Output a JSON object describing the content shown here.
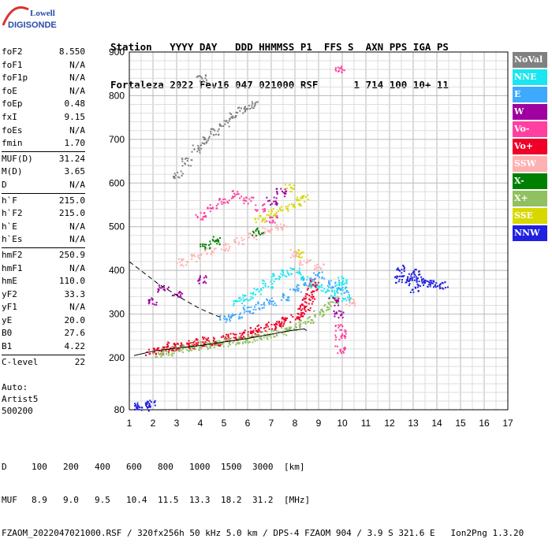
{
  "logo": {
    "line1": "Lowell",
    "line2": "DIGISONDE"
  },
  "header": {
    "row1": "Station   YYYY DAY   DDD HHMMSS P1  FFS S  AXN PPS IGA PS",
    "row2": "Fortaleza 2022 Fev16 047 021000 RSF      1 714 100 10+ 11"
  },
  "params": [
    {
      "group": [
        {
          "label": "foF2",
          "value": "8.550"
        },
        {
          "label": "foF1",
          "value": "N/A"
        },
        {
          "label": "foF1p",
          "value": "N/A"
        },
        {
          "label": "foE",
          "value": "N/A"
        },
        {
          "label": "foEp",
          "value": "0.48"
        },
        {
          "label": "fxI",
          "value": "9.15"
        },
        {
          "label": "foEs",
          "value": "N/A"
        },
        {
          "label": "fmin",
          "value": "1.70"
        }
      ]
    },
    {
      "group": [
        {
          "label": "MUF(D)",
          "value": "31.24"
        },
        {
          "label": "M(D)",
          "value": "3.65"
        },
        {
          "label": "D",
          "value": "N/A"
        }
      ]
    },
    {
      "group": [
        {
          "label": "h`F",
          "value": "215.0"
        },
        {
          "label": "h`F2",
          "value": "215.0"
        },
        {
          "label": "h`E",
          "value": "N/A"
        },
        {
          "label": "h`Es",
          "value": "N/A"
        }
      ]
    },
    {
      "group": [
        {
          "label": "hmF2",
          "value": "250.9"
        },
        {
          "label": "hmF1",
          "value": "N/A"
        },
        {
          "label": "hmE",
          "value": "110.0"
        },
        {
          "label": "yF2",
          "value": "33.3"
        },
        {
          "label": "yF1",
          "value": "N/A"
        },
        {
          "label": "yE",
          "value": "20.0"
        },
        {
          "label": "B0",
          "value": "27.6"
        },
        {
          "label": "B1",
          "value": "4.22"
        }
      ]
    },
    {
      "group": [
        {
          "label": "C-level",
          "value": "22"
        }
      ]
    }
  ],
  "auto": {
    "line1": "Auto:",
    "line2": "Artist5",
    "line3": "500200"
  },
  "legend": [
    {
      "label": "NoVal",
      "color": "#808080",
      "text_color": "#ffffff"
    },
    {
      "label": "NNE",
      "color": "#19e6f0",
      "text_color": "#ffffff"
    },
    {
      "label": "E",
      "color": "#3fa8ff",
      "text_color": "#ffffff"
    },
    {
      "label": "W",
      "color": "#a000a0",
      "text_color": "#ffffff"
    },
    {
      "label": "Vo-",
      "color": "#ff40a0",
      "text_color": "#ffffff"
    },
    {
      "label": "Vo+",
      "color": "#f00028",
      "text_color": "#ffffff"
    },
    {
      "label": "SSW",
      "color": "#ffb0b0",
      "text_color": "#ffffff"
    },
    {
      "label": "X-",
      "color": "#008000",
      "text_color": "#ffffff"
    },
    {
      "label": "X+",
      "color": "#90c060",
      "text_color": "#ffffff"
    },
    {
      "label": "SSE",
      "color": "#d8d800",
      "text_color": "#ffffff"
    },
    {
      "label": "NNW",
      "color": "#2020e0",
      "text_color": "#ffffff"
    }
  ],
  "footer": {
    "d_label": "D",
    "d_values": [
      "100",
      "200",
      "400",
      "600",
      "800",
      "1000",
      "1500",
      "3000",
      "[km]"
    ],
    "muf_label": "MUF",
    "muf_values": [
      "8.9",
      "9.0",
      "9.5",
      "10.4",
      "11.5",
      "13.3",
      "18.2",
      "31.2",
      "[MHz]"
    ],
    "info": "FZAOM_2022047021000.RSF / 320fx256h 50 kHz 5.0 km / DPS-4 FZAOM 904 / 3.9 S 321.6 E   Ion2Png 1.3.20"
  },
  "chart_data": {
    "type": "scatter",
    "xlim": [
      1,
      17
    ],
    "ylim": [
      80,
      900
    ],
    "x_ticks": [
      "1",
      "2",
      "3",
      "4",
      "5",
      "6",
      "7",
      "8",
      "9",
      "10",
      "11",
      "12",
      "13",
      "14",
      "15",
      "16",
      "17"
    ],
    "y_ticks": [
      "80",
      "200",
      "300",
      "400",
      "500",
      "600",
      "700",
      "800",
      "900"
    ],
    "grid": true,
    "legend_position": "right",
    "series": [
      {
        "name": "Vo+",
        "color_key": 5,
        "points": [
          [
            1.9,
            215
          ],
          [
            2.2,
            218
          ],
          [
            2.5,
            222
          ],
          [
            2.8,
            228
          ],
          [
            3.0,
            226
          ],
          [
            3.3,
            232
          ],
          [
            3.6,
            230
          ],
          [
            4.0,
            236
          ],
          [
            4.3,
            240
          ],
          [
            4.6,
            238
          ],
          [
            5.0,
            244
          ],
          [
            5.3,
            248
          ],
          [
            5.6,
            250
          ],
          [
            6.0,
            256
          ],
          [
            6.3,
            262
          ],
          [
            6.6,
            268
          ],
          [
            7.0,
            274
          ],
          [
            7.3,
            280
          ],
          [
            7.6,
            286
          ],
          [
            8.0,
            296
          ],
          [
            8.2,
            305
          ],
          [
            8.4,
            318
          ],
          [
            8.5,
            330
          ],
          [
            8.6,
            345
          ],
          [
            8.7,
            360
          ],
          [
            8.8,
            372
          ]
        ]
      },
      {
        "name": "X+",
        "color_key": 8,
        "points": [
          [
            2.2,
            212
          ],
          [
            2.6,
            214
          ],
          [
            3.0,
            220
          ],
          [
            3.4,
            222
          ],
          [
            3.8,
            226
          ],
          [
            4.2,
            230
          ],
          [
            4.6,
            232
          ],
          [
            5.0,
            236
          ],
          [
            5.4,
            238
          ],
          [
            5.8,
            242
          ],
          [
            6.2,
            246
          ],
          [
            6.6,
            252
          ],
          [
            7.0,
            256
          ],
          [
            7.4,
            262
          ],
          [
            7.8,
            268
          ],
          [
            8.2,
            278
          ],
          [
            8.6,
            290
          ],
          [
            9.0,
            302
          ],
          [
            9.3,
            318
          ],
          [
            9.6,
            335
          ]
        ]
      },
      {
        "name": "NNE",
        "color_key": 1,
        "points": [
          [
            5.6,
            330
          ],
          [
            6.0,
            340
          ],
          [
            6.4,
            355
          ],
          [
            6.8,
            370
          ],
          [
            7.2,
            385
          ],
          [
            7.6,
            395
          ],
          [
            8.0,
            400
          ],
          [
            8.4,
            380
          ],
          [
            8.8,
            370
          ],
          [
            9.2,
            360
          ],
          [
            9.6,
            350
          ],
          [
            9.9,
            365
          ],
          [
            10.0,
            380
          ],
          [
            10.1,
            340
          ]
        ]
      },
      {
        "name": "E",
        "color_key": 2,
        "points": [
          [
            5.0,
            290
          ],
          [
            5.5,
            300
          ],
          [
            6.0,
            310
          ],
          [
            6.5,
            320
          ],
          [
            7.0,
            330
          ],
          [
            7.5,
            340
          ],
          [
            8.0,
            360
          ],
          [
            8.5,
            375
          ],
          [
            9.0,
            390
          ],
          [
            9.5,
            370
          ],
          [
            10.0,
            355
          ]
        ]
      },
      {
        "name": "SSW",
        "color_key": 6,
        "points": [
          [
            3.2,
            420
          ],
          [
            3.8,
            430
          ],
          [
            4.4,
            445
          ],
          [
            5.0,
            455
          ],
          [
            5.6,
            470
          ],
          [
            6.2,
            480
          ],
          [
            6.8,
            490
          ],
          [
            7.4,
            500
          ],
          [
            8.0,
            440
          ],
          [
            8.4,
            420
          ],
          [
            9.0,
            410
          ],
          [
            10.3,
            330
          ]
        ]
      },
      {
        "name": "SSE",
        "color_key": 9,
        "points": [
          [
            6.5,
            520
          ],
          [
            7.0,
            535
          ],
          [
            7.5,
            545
          ],
          [
            8.0,
            555
          ],
          [
            8.3,
            565
          ],
          [
            7.8,
            590
          ],
          [
            8.2,
            440
          ]
        ]
      },
      {
        "name": "W",
        "color_key": 3,
        "points": [
          [
            2.0,
            330
          ],
          [
            2.4,
            360
          ],
          [
            3.0,
            345
          ],
          [
            4.0,
            380
          ],
          [
            7.0,
            560
          ],
          [
            7.4,
            580
          ],
          [
            9.6,
            330
          ],
          [
            9.8,
            300
          ]
        ]
      },
      {
        "name": "NNW",
        "color_key": 10,
        "points": [
          [
            1.3,
            90
          ],
          [
            1.6,
            88
          ],
          [
            1.9,
            95
          ],
          [
            12.5,
            405
          ],
          [
            12.7,
            380
          ],
          [
            12.9,
            385
          ],
          [
            13.1,
            395
          ],
          [
            13.3,
            375
          ],
          [
            13.5,
            372
          ],
          [
            13.8,
            370
          ],
          [
            14.2,
            368
          ],
          [
            12.4,
            380
          ],
          [
            13.0,
            360
          ]
        ]
      },
      {
        "name": "Vo-",
        "color_key": 4,
        "points": [
          [
            4.0,
            525
          ],
          [
            4.5,
            545
          ],
          [
            5.0,
            560
          ],
          [
            5.5,
            575
          ],
          [
            6.0,
            560
          ],
          [
            6.5,
            545
          ],
          [
            7.0,
            520
          ],
          [
            9.9,
            860
          ],
          [
            9.9,
            220
          ],
          [
            9.9,
            250
          ],
          [
            9.9,
            270
          ]
        ]
      },
      {
        "name": "X-",
        "color_key": 7,
        "points": [
          [
            4.2,
            460
          ],
          [
            4.6,
            470
          ],
          [
            6.4,
            490
          ]
        ]
      },
      {
        "name": "NoVal",
        "color_key": 0,
        "points": [
          [
            3.0,
            620
          ],
          [
            3.4,
            650
          ],
          [
            3.8,
            680
          ],
          [
            4.2,
            700
          ],
          [
            4.6,
            720
          ],
          [
            5.0,
            740
          ],
          [
            5.4,
            755
          ],
          [
            5.8,
            770
          ],
          [
            6.2,
            780
          ],
          [
            4.0,
            840
          ]
        ]
      }
    ]
  }
}
